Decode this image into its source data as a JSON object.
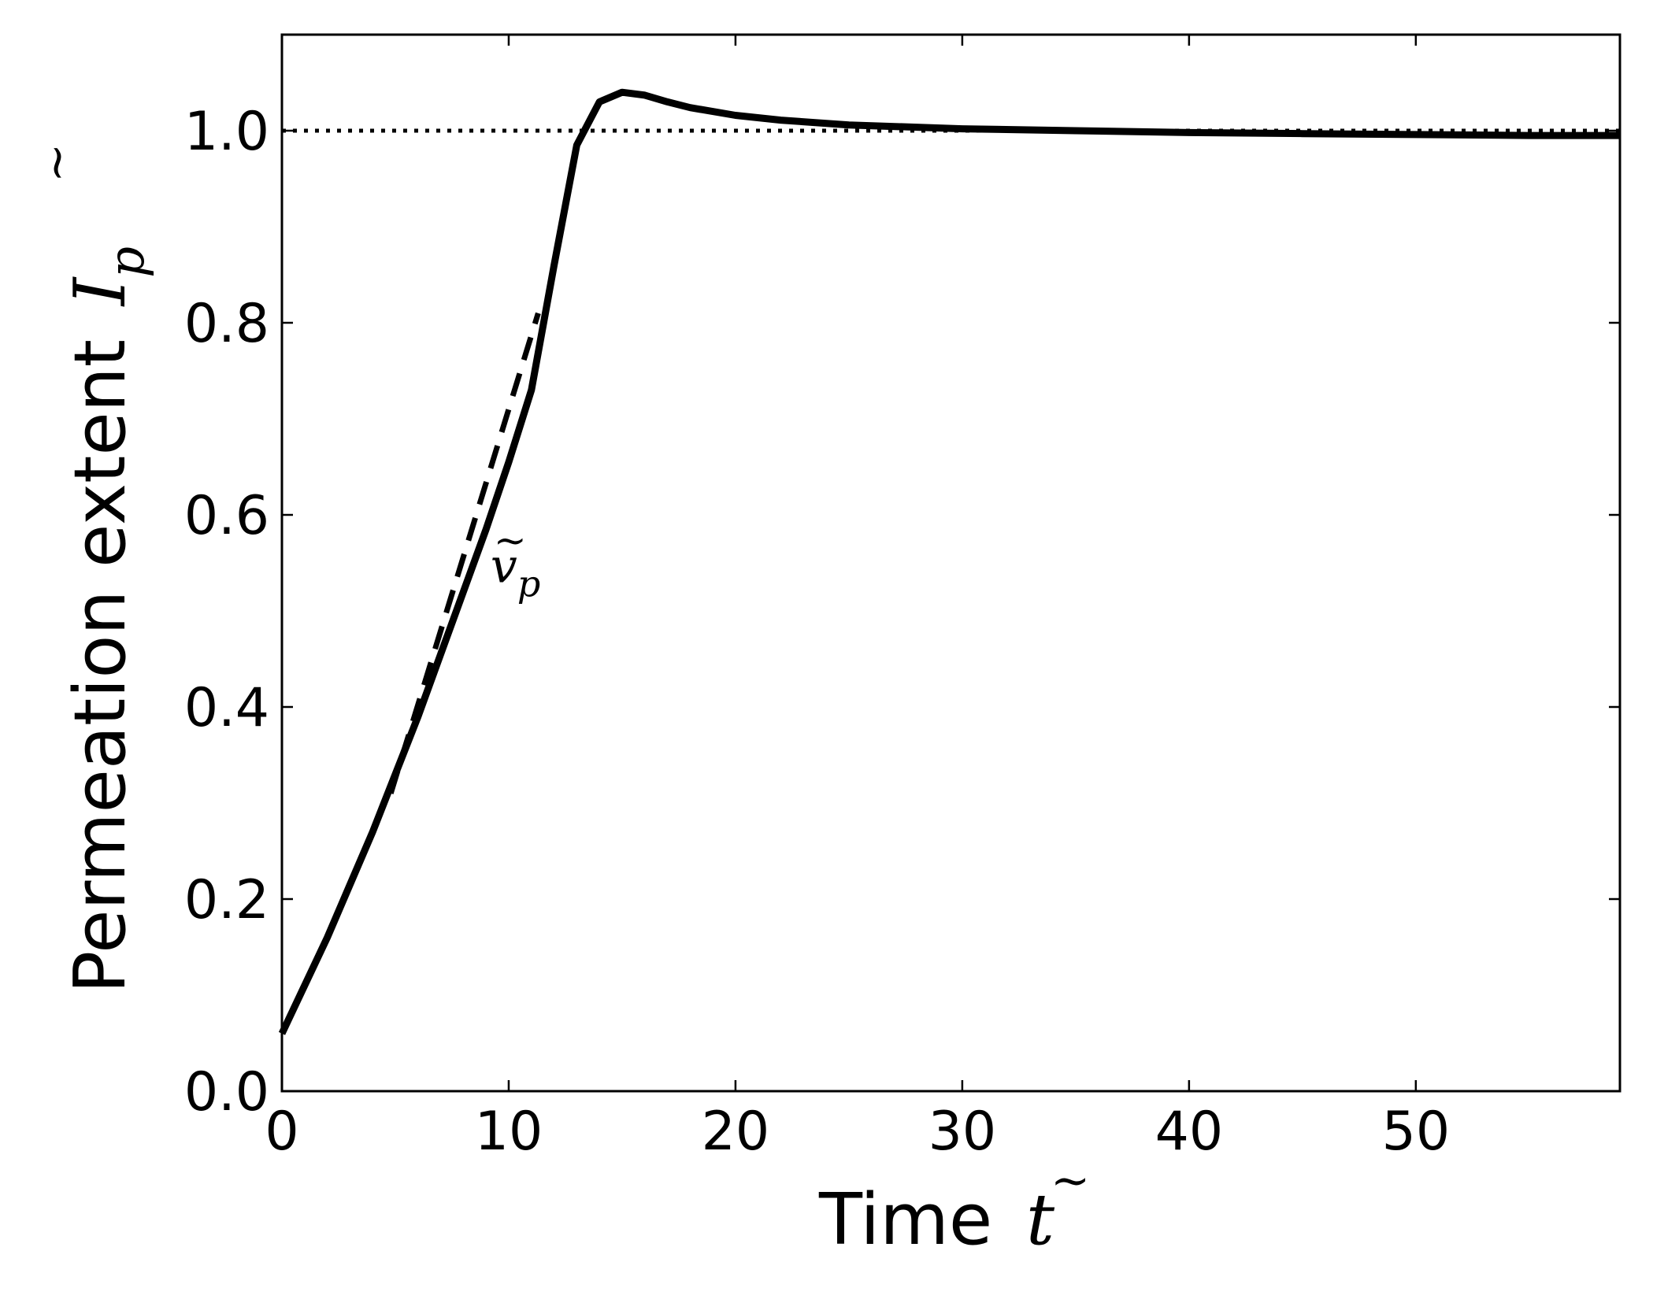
{
  "chart_data": {
    "type": "line",
    "xlabel": "Time",
    "xlabel_symbol": "t",
    "ylabel": "Permeation extent",
    "ylabel_symbol": "I",
    "ylabel_subscript": "p",
    "xlim": [
      0,
      59
    ],
    "ylim": [
      0,
      1.1
    ],
    "xticks": [
      0,
      10,
      20,
      30,
      40,
      50
    ],
    "yticks": [
      0.0,
      0.2,
      0.4,
      0.6,
      0.8,
      1.0
    ],
    "xtick_labels": [
      "0",
      "10",
      "20",
      "30",
      "40",
      "50"
    ],
    "ytick_labels": [
      "0.0",
      "0.2",
      "0.4",
      "0.6",
      "0.8",
      "1.0"
    ],
    "grid": false,
    "series": [
      {
        "style": "solid",
        "color": "#000000",
        "x": [
          0,
          1,
          2,
          3,
          4,
          5,
          6,
          7,
          8,
          9,
          10,
          11,
          12,
          13,
          14,
          15,
          16,
          17,
          18,
          20,
          22,
          25,
          30,
          35,
          40,
          45,
          50,
          55,
          59
        ],
        "y": [
          0.06,
          0.11,
          0.16,
          0.215,
          0.27,
          0.33,
          0.39,
          0.455,
          0.52,
          0.585,
          0.655,
          0.73,
          0.86,
          0.985,
          1.03,
          1.04,
          1.037,
          1.03,
          1.024,
          1.016,
          1.011,
          1.006,
          1.002,
          1.0,
          0.998,
          0.997,
          0.996,
          0.995,
          0.995
        ]
      },
      {
        "style": "dashed",
        "color": "#000000",
        "x": [
          4.8,
          11.3
        ],
        "y": [
          0.31,
          0.81
        ]
      },
      {
        "style": "dotted",
        "color": "#000000",
        "x": [
          0,
          59
        ],
        "y": [
          1.0,
          1.0
        ]
      }
    ],
    "annotations": [
      {
        "symbol": "v",
        "subscript": "p",
        "x": 9.2,
        "y": 0.53
      }
    ]
  }
}
